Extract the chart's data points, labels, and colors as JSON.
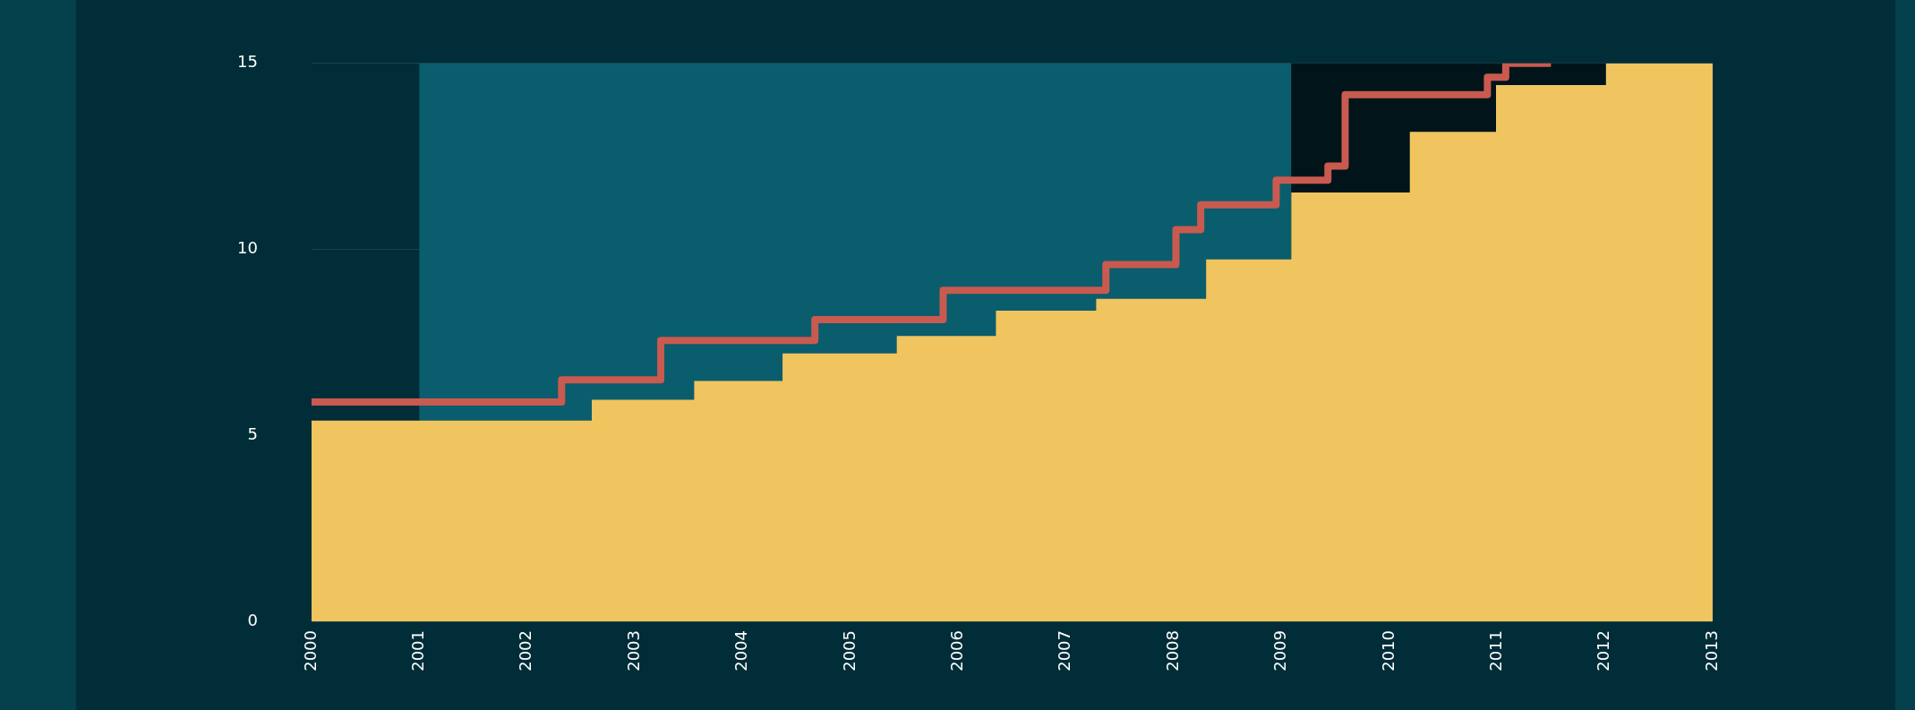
{
  "chart_data": {
    "type": "step",
    "xlim": [
      2000,
      2013
    ],
    "xticks": [
      2000,
      2001,
      2002,
      2003,
      2004,
      2005,
      2006,
      2007,
      2008,
      2009,
      2010,
      2011,
      2012,
      2013
    ],
    "ylim": [
      0,
      15
    ],
    "yticks": [
      0,
      5,
      10,
      15
    ],
    "grid": "y",
    "legend": false,
    "bands": [
      {
        "axis": "x",
        "from": 2001,
        "to": 2009.09,
        "color": "#0a5d6d"
      },
      {
        "axis": "x",
        "from": 2009.09,
        "to": 2012.01,
        "color": "#00141a"
      }
    ],
    "series": [
      {
        "type": "area",
        "color": "#f0c45f",
        "x": [
          2000,
          2002.6,
          2002.6,
          2003.55,
          2003.55,
          2004.37,
          2004.37,
          2005.43,
          2005.43,
          2006.35,
          2006.35,
          2007.28,
          2007.28,
          2008.3,
          2008.3,
          2009.09,
          2009.09,
          2010.19,
          2010.19,
          2010.99,
          2010.99,
          2012.01,
          2012.01,
          2013
        ],
        "values": [
          5.4,
          5.4,
          5.96,
          5.96,
          6.46,
          6.46,
          7.2,
          7.2,
          7.67,
          7.67,
          8.35,
          8.35,
          8.67,
          8.67,
          9.73,
          9.73,
          11.53,
          11.53,
          13.16,
          13.16,
          14.42,
          14.42,
          15,
          15
        ]
      },
      {
        "type": "step",
        "color": "#c95a4f",
        "x": [
          2000,
          2002.32,
          2003.24,
          2004.67,
          2005.86,
          2007.37,
          2008.02,
          2008.25,
          2008.95,
          2009.43,
          2009.59,
          2010.91,
          2011.08,
          2011.5
        ],
        "values": [
          5.9,
          6.49,
          7.55,
          8.11,
          8.9,
          9.59,
          10.53,
          11.2,
          11.86,
          12.24,
          14.16,
          14.63,
          15,
          15
        ]
      }
    ]
  }
}
